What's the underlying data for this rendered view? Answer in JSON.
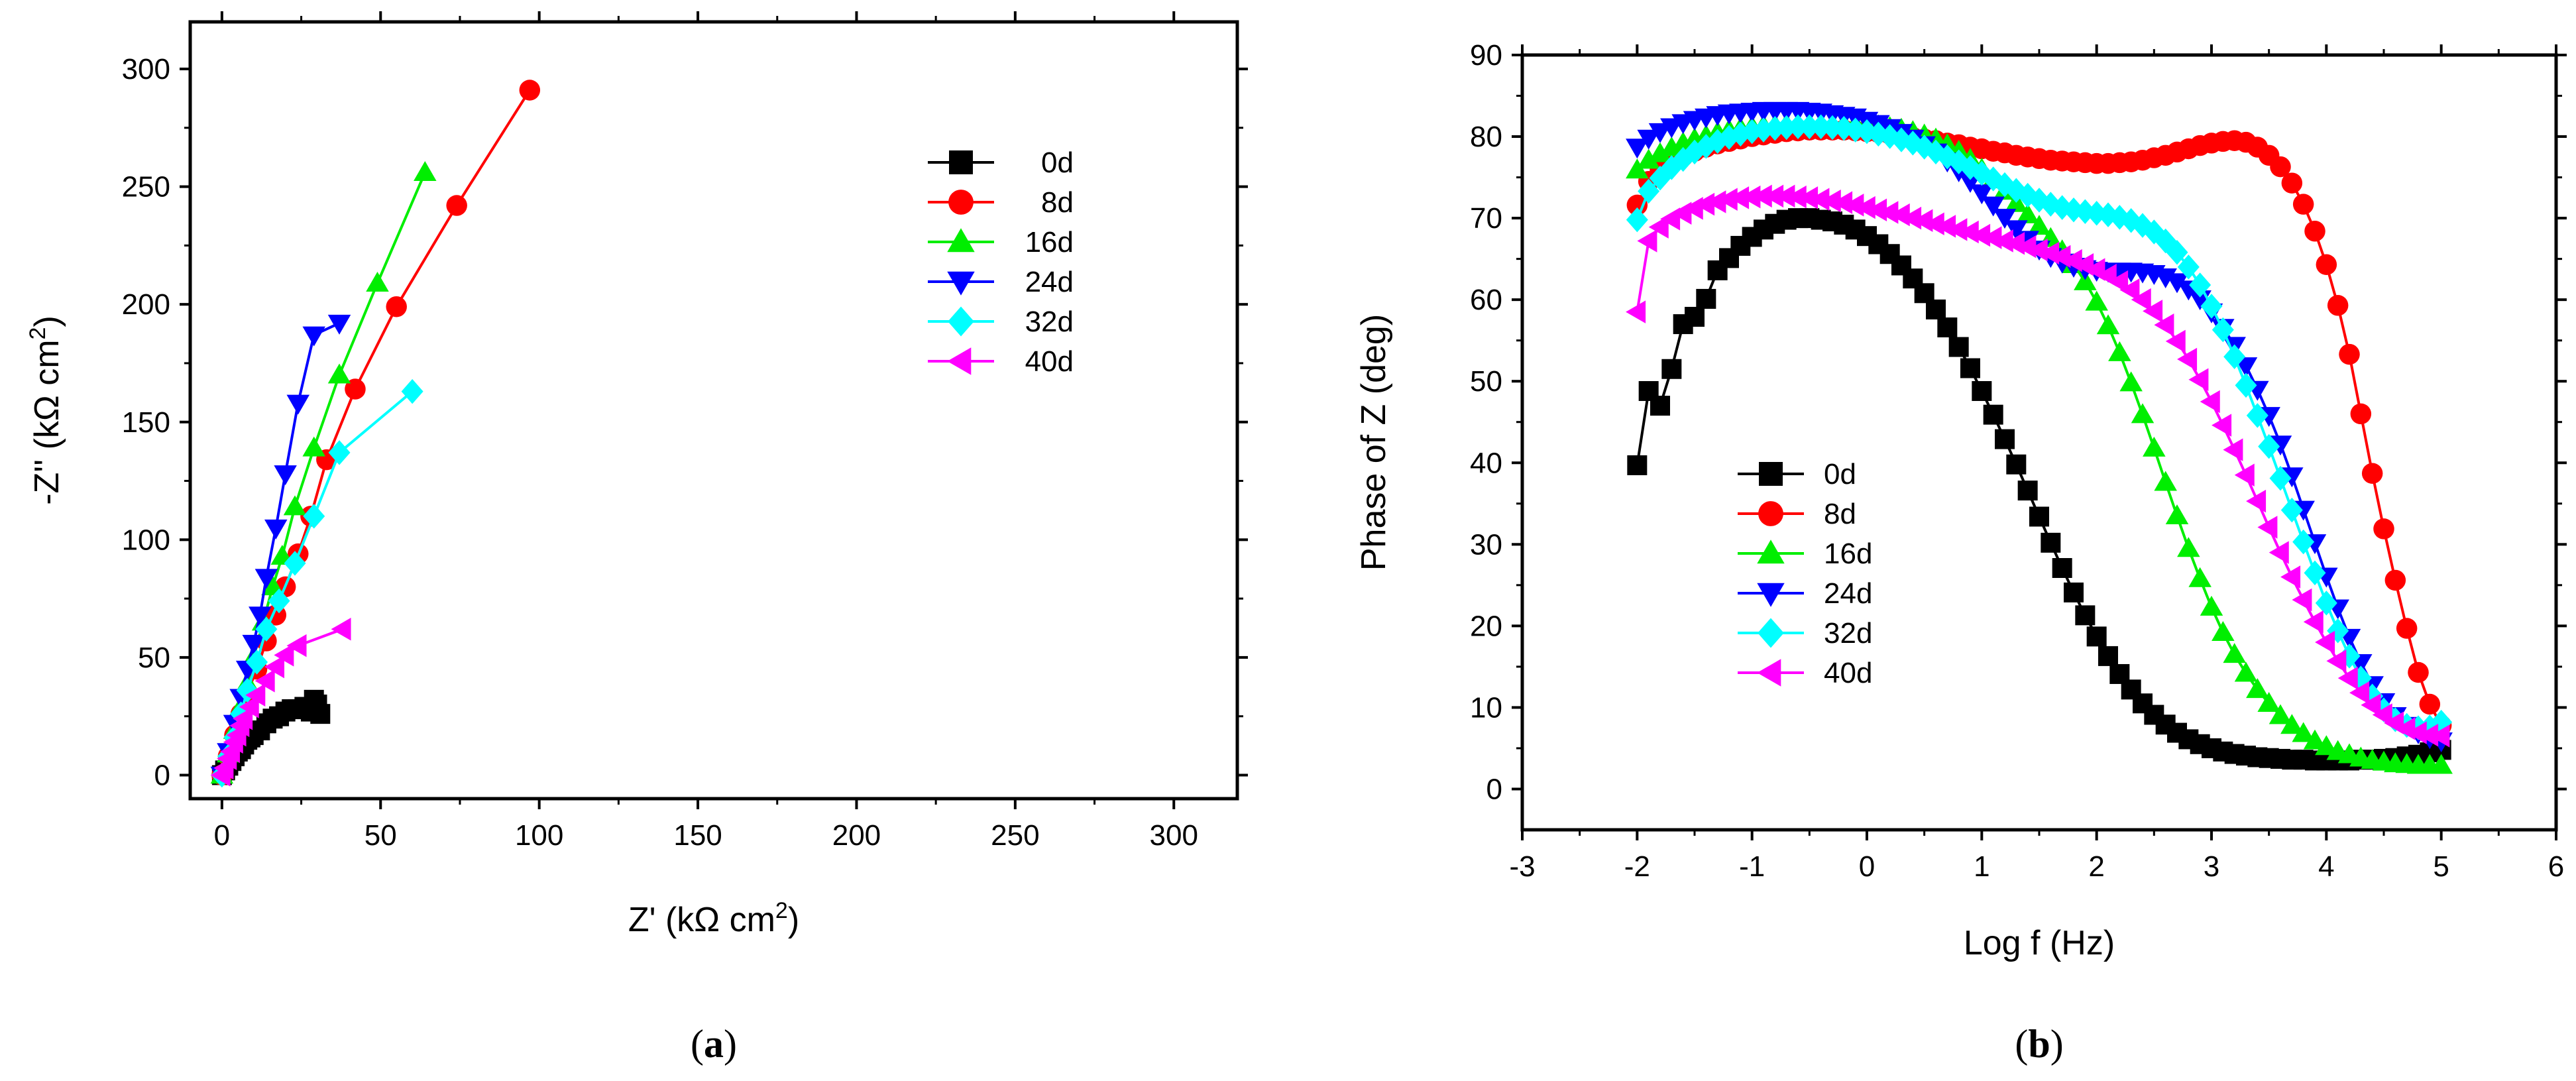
{
  "chart_data": [
    {
      "id": "a",
      "type": "scatter",
      "panel_label": "a",
      "xlabel": "Z' (kΩ cm",
      "xlabel_sup": "2",
      "xlabel_end": ")",
      "ylabel": "-Z'' (kΩ cm",
      "ylabel_sup": "2",
      "ylabel_end": ")",
      "xlim": [
        -10,
        320
      ],
      "ylim": [
        -10,
        320
      ],
      "xticks": [
        0,
        50,
        100,
        150,
        200,
        250,
        300
      ],
      "yticks": [
        0,
        50,
        100,
        150,
        200,
        250,
        300
      ],
      "legend_position": "top-right",
      "series": [
        {
          "name": "0d",
          "color": "#000000",
          "marker": "square",
          "x": [
            0,
            1,
            2,
            3,
            4,
            5,
            6,
            7,
            8,
            9,
            10,
            12,
            14,
            16,
            18,
            20,
            22,
            24,
            26,
            28,
            29,
            30,
            31
          ],
          "y": [
            0,
            2,
            4,
            6,
            8,
            10,
            11,
            13,
            15,
            16,
            17,
            19,
            22,
            24,
            25,
            27,
            28,
            28,
            29,
            27,
            32,
            30,
            26
          ]
        },
        {
          "name": "8d",
          "color": "#ff0000",
          "marker": "circle",
          "x": [
            0,
            2,
            4,
            6,
            8,
            11,
            14,
            17,
            20,
            24,
            28,
            33,
            42,
            55,
            74,
            97
          ],
          "y": [
            0,
            8,
            17,
            26,
            35,
            45,
            57,
            68,
            80,
            94,
            110,
            134,
            164,
            199,
            242,
            291
          ]
        },
        {
          "name": "16d",
          "color": "#00ee00",
          "marker": "triangle-up",
          "x": [
            0,
            2,
            4,
            6,
            8,
            10,
            13,
            16,
            19,
            23,
            29,
            37,
            49,
            64
          ],
          "y": [
            0,
            9,
            19,
            29,
            39,
            50,
            65,
            80,
            93,
            114,
            139,
            170,
            209,
            256
          ]
        },
        {
          "name": "24d",
          "color": "#0000ff",
          "marker": "triangle-down",
          "x": [
            0,
            2,
            4,
            6,
            8,
            10,
            12,
            14,
            17,
            20,
            24,
            29,
            37
          ],
          "y": [
            0,
            10,
            22,
            33,
            45,
            56,
            68,
            84,
            105,
            128,
            158,
            187,
            192
          ]
        },
        {
          "name": "32d",
          "color": "#00ffff",
          "marker": "diamond",
          "x": [
            0,
            2,
            4,
            6,
            8,
            11,
            14,
            18,
            23,
            29,
            37,
            60
          ],
          "y": [
            0,
            8,
            16,
            26,
            36,
            48,
            62,
            74,
            90,
            110,
            137,
            163
          ]
        },
        {
          "name": "40d",
          "color": "#ff00ff",
          "marker": "triangle-left",
          "x": [
            0,
            1,
            2,
            3,
            4,
            5,
            6,
            7,
            9,
            11,
            14,
            17,
            20,
            24,
            38
          ],
          "y": [
            0,
            3,
            7,
            10,
            14,
            17,
            21,
            24,
            29,
            34,
            40,
            46,
            51,
            55,
            62
          ]
        }
      ]
    },
    {
      "id": "b",
      "type": "scatter",
      "panel_label": "b",
      "xlabel": "Log f (Hz)",
      "ylabel": "Phase of Z (deg)",
      "xlim": [
        -3,
        6
      ],
      "ylim": [
        -5,
        90
      ],
      "xticks": [
        -3,
        -2,
        -1,
        0,
        1,
        2,
        3,
        4,
        5,
        6
      ],
      "yticks": [
        0,
        10,
        20,
        30,
        40,
        50,
        60,
        70,
        80,
        90
      ],
      "legend_position": "bottom-left",
      "x": [
        -2.0,
        -1.9,
        -1.8,
        -1.7,
        -1.6,
        -1.5,
        -1.4,
        -1.3,
        -1.2,
        -1.1,
        -1.0,
        -0.9,
        -0.8,
        -0.7,
        -0.6,
        -0.5,
        -0.4,
        -0.3,
        -0.2,
        -0.1,
        0.0,
        0.1,
        0.2,
        0.3,
        0.4,
        0.5,
        0.6,
        0.7,
        0.8,
        0.9,
        1.0,
        1.1,
        1.2,
        1.3,
        1.4,
        1.5,
        1.6,
        1.7,
        1.8,
        1.9,
        2.0,
        2.1,
        2.2,
        2.3,
        2.4,
        2.5,
        2.6,
        2.7,
        2.8,
        2.9,
        3.0,
        3.1,
        3.2,
        3.3,
        3.4,
        3.5,
        3.6,
        3.7,
        3.8,
        3.9,
        4.0,
        4.1,
        4.2,
        4.3,
        4.4,
        4.5,
        4.6,
        4.7,
        4.8,
        4.9,
        5.0
      ],
      "series": [
        {
          "name": "0d",
          "color": "#000000",
          "marker": "square",
          "y": [
            39.7,
            48.8,
            47.0,
            51.5,
            57.0,
            57.9,
            60.1,
            63.6,
            65.1,
            66.6,
            67.7,
            68.6,
            69.3,
            69.8,
            70.0,
            70.0,
            69.8,
            69.6,
            69.2,
            68.6,
            67.8,
            66.8,
            65.6,
            64.2,
            62.6,
            60.8,
            58.8,
            56.6,
            54.2,
            51.6,
            48.8,
            45.9,
            42.9,
            39.8,
            36.6,
            33.4,
            30.2,
            27.1,
            24.1,
            21.3,
            18.7,
            16.3,
            14.1,
            12.2,
            10.5,
            9.1,
            7.9,
            6.9,
            6.1,
            5.5,
            5.0,
            4.6,
            4.3,
            4.1,
            3.9,
            3.8,
            3.7,
            3.6,
            3.6,
            3.5,
            3.5,
            3.5,
            3.5,
            3.6,
            3.6,
            3.7,
            3.8,
            4.0,
            4.2,
            4.5,
            4.8
          ]
        },
        {
          "name": "8d",
          "color": "#ff0000",
          "marker": "circle",
          "y": [
            71.6,
            74.5,
            75.9,
            76.9,
            77.6,
            78.2,
            78.7,
            79.1,
            79.4,
            79.7,
            80.0,
            80.2,
            80.4,
            80.6,
            80.7,
            80.8,
            80.8,
            80.8,
            80.8,
            80.7,
            80.6,
            80.5,
            80.3,
            80.1,
            79.9,
            79.7,
            79.5,
            79.2,
            79.0,
            78.7,
            78.5,
            78.2,
            78.0,
            77.7,
            77.5,
            77.3,
            77.1,
            77.0,
            76.9,
            76.8,
            76.7,
            76.7,
            76.8,
            76.9,
            77.1,
            77.4,
            77.7,
            78.1,
            78.5,
            78.9,
            79.2,
            79.4,
            79.5,
            79.3,
            78.7,
            77.7,
            76.3,
            74.3,
            71.7,
            68.4,
            64.3,
            59.3,
            53.3,
            46.0,
            38.7,
            31.9,
            25.6,
            19.7,
            14.3,
            10.4,
            7.8
          ]
        },
        {
          "name": "16d",
          "color": "#00ee00",
          "marker": "triangle-up",
          "y": [
            75.9,
            77.1,
            77.9,
            78.6,
            79.2,
            79.7,
            80.1,
            80.5,
            80.8,
            81.0,
            81.2,
            81.3,
            81.4,
            81.5,
            81.5,
            81.5,
            81.5,
            81.5,
            81.5,
            81.5,
            81.4,
            81.3,
            81.1,
            80.9,
            80.6,
            80.2,
            79.7,
            79.0,
            78.2,
            77.2,
            76.0,
            74.7,
            73.3,
            71.8,
            70.4,
            69.0,
            67.5,
            66.0,
            64.3,
            62.2,
            59.7,
            56.8,
            53.5,
            49.8,
            45.9,
            41.8,
            37.6,
            33.5,
            29.5,
            25.8,
            22.3,
            19.2,
            16.5,
            14.2,
            12.2,
            10.5,
            9.0,
            7.8,
            6.8,
            5.9,
            5.2,
            4.6,
            4.2,
            3.8,
            3.5,
            3.3,
            3.1,
            3.0,
            2.9,
            2.9,
            2.9
          ]
        },
        {
          "name": "24d",
          "color": "#0000ff",
          "marker": "triangle-down",
          "y": [
            78.7,
            79.8,
            80.6,
            81.2,
            81.7,
            82.1,
            82.4,
            82.7,
            82.9,
            83.0,
            83.1,
            83.2,
            83.2,
            83.2,
            83.2,
            83.1,
            83.0,
            82.8,
            82.6,
            82.4,
            82.0,
            81.6,
            81.1,
            80.5,
            79.8,
            79.0,
            78.1,
            77.0,
            75.8,
            74.5,
            73.1,
            71.6,
            70.1,
            68.7,
            67.4,
            66.2,
            65.3,
            64.6,
            64.1,
            63.8,
            63.6,
            63.5,
            63.5,
            63.5,
            63.4,
            63.2,
            62.8,
            62.2,
            61.3,
            60.1,
            58.5,
            56.6,
            54.4,
            51.9,
            49.0,
            45.8,
            42.3,
            38.4,
            34.3,
            30.2,
            26.1,
            22.2,
            18.6,
            15.5,
            12.8,
            10.7,
            9.0,
            7.8,
            6.9,
            6.3,
            5.9
          ]
        },
        {
          "name": "32d",
          "color": "#00ffff",
          "marker": "diamond",
          "y": [
            69.8,
            73.3,
            74.9,
            76.2,
            77.2,
            78.1,
            78.8,
            79.4,
            79.9,
            80.3,
            80.6,
            80.8,
            81.0,
            81.1,
            81.2,
            81.2,
            81.2,
            81.1,
            81.0,
            80.8,
            80.6,
            80.3,
            80.0,
            79.6,
            79.2,
            78.7,
            78.1,
            77.5,
            76.9,
            76.2,
            75.5,
            74.8,
            74.1,
            73.4,
            72.8,
            72.2,
            71.7,
            71.3,
            71.0,
            70.8,
            70.6,
            70.4,
            70.1,
            69.7,
            69.1,
            68.3,
            67.2,
            65.8,
            64.0,
            61.8,
            59.2,
            56.3,
            53.0,
            49.5,
            45.8,
            42.0,
            38.1,
            34.2,
            30.3,
            26.5,
            22.8,
            19.4,
            16.3,
            13.6,
            11.4,
            9.7,
            8.5,
            7.8,
            7.5,
            7.6,
            8.2
          ]
        },
        {
          "name": "40d",
          "color": "#ff00ff",
          "marker": "triangle-left",
          "y": [
            58.5,
            67.2,
            68.9,
            69.9,
            70.6,
            71.2,
            71.7,
            72.0,
            72.3,
            72.5,
            72.6,
            72.7,
            72.7,
            72.7,
            72.6,
            72.5,
            72.3,
            72.1,
            71.9,
            71.6,
            71.3,
            71.0,
            70.7,
            70.4,
            70.0,
            69.7,
            69.3,
            69.0,
            68.6,
            68.3,
            67.9,
            67.6,
            67.2,
            66.9,
            66.5,
            66.1,
            65.7,
            65.3,
            64.8,
            64.3,
            63.7,
            63.0,
            62.2,
            61.2,
            60.0,
            58.6,
            56.9,
            54.9,
            52.7,
            50.2,
            47.5,
            44.6,
            41.6,
            38.5,
            35.3,
            32.1,
            29.0,
            26.0,
            23.2,
            20.5,
            18.0,
            15.7,
            13.6,
            11.8,
            10.3,
            9.1,
            8.1,
            7.4,
            6.9,
            6.6,
            6.5
          ]
        }
      ]
    }
  ]
}
